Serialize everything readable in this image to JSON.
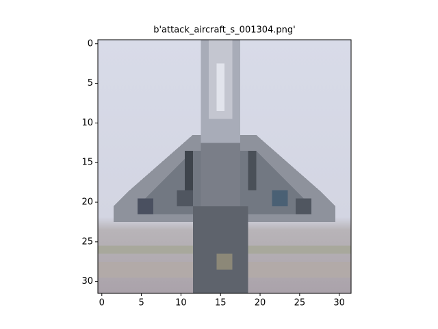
{
  "chart_data": {
    "type": "image",
    "title": "b'attack_aircraft_s_001304.png'",
    "xlim": [
      -0.5,
      31.5
    ],
    "ylim": [
      31.5,
      -0.5
    ],
    "xticks": [
      0,
      5,
      10,
      15,
      20,
      25,
      30
    ],
    "yticks": [
      0,
      5,
      10,
      15,
      20,
      25,
      30
    ]
  }
}
